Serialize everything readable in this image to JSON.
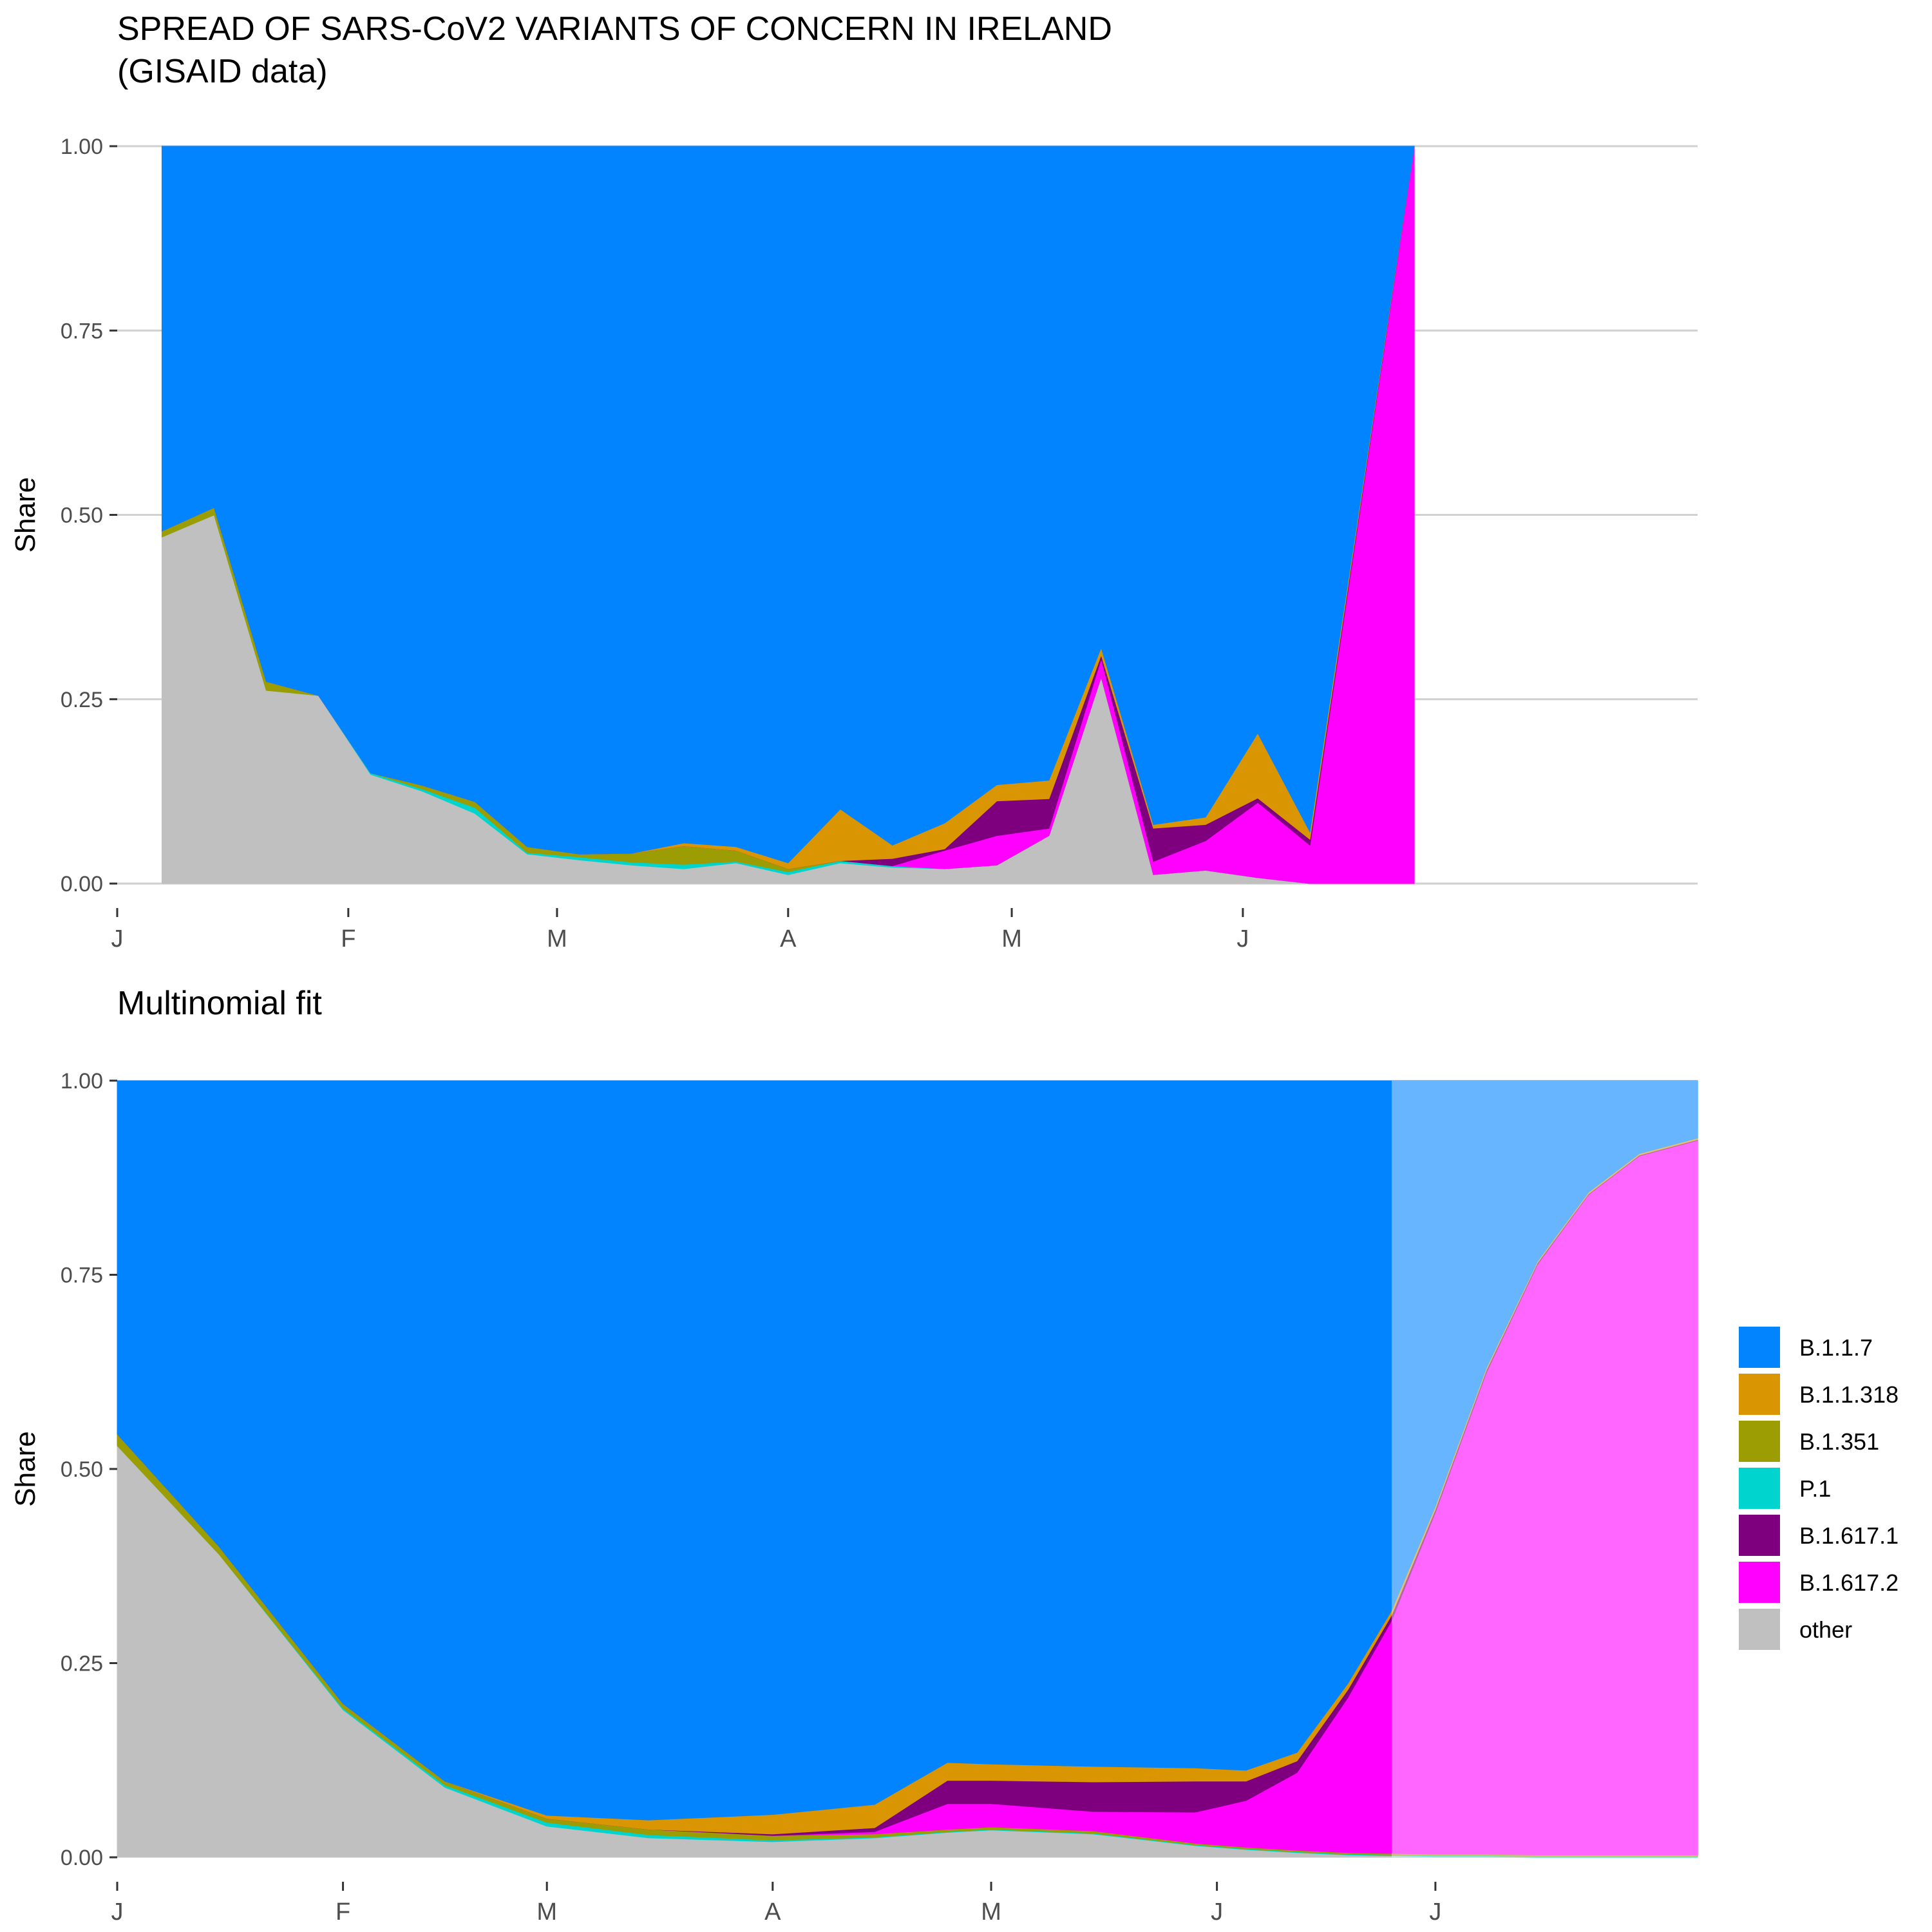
{
  "figure": {
    "title_line1": "SPREAD OF SARS-CoV2 VARIANTS OF CONCERN IN IRELAND",
    "title_line2": "(GISAID data)"
  },
  "legend": {
    "items": [
      {
        "label": "B.1.1.7",
        "color": "#0384FF"
      },
      {
        "label": "B.1.1.318",
        "color": "#DA9602"
      },
      {
        "label": "B.1.351",
        "color": "#9B9D02"
      },
      {
        "label": "P.1",
        "color": "#00D4CF"
      },
      {
        "label": "B.1.617.1",
        "color": "#7E007F"
      },
      {
        "label": "B.1.617.2",
        "color": "#FF00FF"
      },
      {
        "label": "other",
        "color": "#C0C0C0"
      }
    ]
  },
  "chart_data": [
    {
      "type": "area",
      "title": "",
      "xlabel": "",
      "ylabel": "Share",
      "ylim": [
        0,
        1
      ],
      "y_ticks": [
        "0.00",
        "0.25",
        "0.50",
        "0.75",
        "1.00"
      ],
      "x_ticks": [
        {
          "date": "2021-01-01",
          "label": "J"
        },
        {
          "date": "2021-02-01",
          "label": "F"
        },
        {
          "date": "2021-03-01",
          "label": "M"
        },
        {
          "date": "2021-04-01",
          "label": "A"
        },
        {
          "date": "2021-05-01",
          "label": "M"
        },
        {
          "date": "2021-06-01",
          "label": "J"
        }
      ],
      "xlim": [
        "2021-01-01",
        "2021-08-01"
      ],
      "grid": "horizontal",
      "x": [
        "2021-01-07",
        "2021-01-14",
        "2021-01-21",
        "2021-01-28",
        "2021-02-04",
        "2021-02-11",
        "2021-02-18",
        "2021-02-25",
        "2021-03-04",
        "2021-03-11",
        "2021-03-18",
        "2021-03-25",
        "2021-04-01",
        "2021-04-08",
        "2021-04-15",
        "2021-04-22",
        "2021-04-29",
        "2021-05-06",
        "2021-05-13",
        "2021-05-20",
        "2021-05-27",
        "2021-06-03",
        "2021-06-10",
        "2021-06-24"
      ],
      "series": [
        {
          "name": "other",
          "color": "#C0C0C0",
          "values": [
            0.47,
            0.5,
            0.262,
            0.255,
            0.148,
            0.125,
            0.095,
            0.04,
            0.032,
            0.025,
            0.02,
            0.028,
            0.012,
            0.028,
            0.022,
            0.02,
            0.025,
            0.065,
            0.28,
            0.012,
            0.018,
            0.008,
            0.0,
            0.0
          ]
        },
        {
          "name": "P.1",
          "color": "#00D4CF",
          "values": [
            0,
            0,
            0,
            0,
            0.002,
            0.003,
            0.008,
            0.002,
            0.004,
            0.004,
            0.006,
            0.002,
            0.004,
            0.003,
            0.002,
            0,
            0,
            0,
            0,
            0,
            0,
            0,
            0,
            0
          ]
        },
        {
          "name": "B.1.351",
          "color": "#9B9D02",
          "values": [
            0.008,
            0.01,
            0.012,
            0,
            0,
            0.005,
            0.008,
            0.008,
            0.004,
            0.012,
            0.025,
            0.015,
            0.004,
            0,
            0,
            0,
            0,
            0,
            0,
            0,
            0,
            0,
            0,
            0
          ]
        },
        {
          "name": "B.1.617.2",
          "color": "#FF00FF",
          "values": [
            0,
            0,
            0,
            0,
            0,
            0,
            0,
            0,
            0,
            0,
            0,
            0,
            0,
            0,
            0,
            0.025,
            0.04,
            0.01,
            0.025,
            0.018,
            0.04,
            0.102,
            0.052,
            1.0
          ]
        },
        {
          "name": "B.1.617.1",
          "color": "#7E007F",
          "values": [
            0,
            0,
            0,
            0,
            0,
            0,
            0,
            0,
            0,
            0,
            0,
            0,
            0,
            0,
            0.01,
            0.002,
            0.047,
            0.04,
            0.005,
            0.045,
            0.022,
            0.006,
            0.008,
            0
          ]
        },
        {
          "name": "B.1.1.318",
          "color": "#DA9602",
          "values": [
            0,
            0,
            0,
            0,
            0,
            0,
            0,
            0,
            0,
            0,
            0.004,
            0.005,
            0.008,
            0.07,
            0.018,
            0.035,
            0.022,
            0.025,
            0.01,
            0.005,
            0.01,
            0.088,
            0.01,
            0
          ]
        },
        {
          "name": "B.1.1.7",
          "color": "#0384FF",
          "values": [
            0.522,
            0.49,
            0.726,
            0.745,
            0.85,
            0.867,
            0.889,
            0.95,
            0.96,
            0.959,
            0.945,
            0.95,
            0.972,
            0.899,
            0.948,
            0.918,
            0.866,
            0.86,
            0.68,
            0.92,
            0.91,
            0.796,
            0.93,
            0
          ]
        }
      ]
    },
    {
      "type": "area",
      "title": "Multinomial fit",
      "xlabel": "",
      "ylabel": "Share",
      "ylim": [
        0,
        1
      ],
      "y_ticks": [
        "0.00",
        "0.25",
        "0.50",
        "0.75",
        "1.00"
      ],
      "x_ticks": [
        {
          "date": "2021-01-01",
          "label": "J"
        },
        {
          "date": "2021-02-01",
          "label": "F"
        },
        {
          "date": "2021-03-01",
          "label": "M"
        },
        {
          "date": "2021-04-01",
          "label": "A"
        },
        {
          "date": "2021-05-01",
          "label": "M"
        },
        {
          "date": "2021-06-01",
          "label": "J"
        },
        {
          "date": "2021-07-01",
          "label": "J"
        }
      ],
      "xlim": [
        "2021-01-01",
        "2021-08-06"
      ],
      "grid": "none",
      "forecast_from": "2021-06-25",
      "x": [
        "2021-01-01",
        "2021-01-15",
        "2021-02-01",
        "2021-02-15",
        "2021-03-01",
        "2021-03-15",
        "2021-04-01",
        "2021-04-15",
        "2021-04-25",
        "2021-05-01",
        "2021-05-15",
        "2021-05-29",
        "2021-06-05",
        "2021-06-12",
        "2021-06-19",
        "2021-06-25",
        "2021-07-01",
        "2021-07-08",
        "2021-07-15",
        "2021-07-22",
        "2021-07-29",
        "2021-08-06"
      ],
      "series": [
        {
          "name": "other",
          "color": "#C0C0C0",
          "values": [
            0.53,
            0.39,
            0.19,
            0.09,
            0.04,
            0.025,
            0.02,
            0.025,
            0.032,
            0.035,
            0.03,
            0.015,
            0.01,
            0.006,
            0.003,
            0.002,
            0.001,
            0.001,
            0.0,
            0.0,
            0.0,
            0.0
          ]
        },
        {
          "name": "P.1",
          "color": "#00D4CF",
          "values": [
            0,
            0,
            0.002,
            0.003,
            0.005,
            0.004,
            0.002,
            0.001,
            0.001,
            0.001,
            0.001,
            0.001,
            0.001,
            0.001,
            0.001,
            0.001,
            0.001,
            0.001,
            0.001,
            0.001,
            0.001,
            0.001
          ]
        },
        {
          "name": "B.1.351",
          "color": "#9B9D02",
          "values": [
            0.015,
            0.01,
            0.006,
            0.005,
            0.005,
            0.007,
            0.006,
            0.004,
            0.003,
            0.003,
            0.003,
            0.002,
            0.002,
            0.002,
            0.002,
            0.002,
            0.002,
            0.002,
            0.002,
            0.002,
            0.002,
            0.002
          ]
        },
        {
          "name": "B.1.617.2",
          "color": "#FF00FF",
          "values": [
            0,
            0,
            0,
            0,
            0,
            0,
            0,
            0.003,
            0.033,
            0.03,
            0.025,
            0.04,
            0.06,
            0.1,
            0.2,
            0.3,
            0.44,
            0.62,
            0.76,
            0.85,
            0.9,
            0.92
          ]
        },
        {
          "name": "B.1.617.1",
          "color": "#7E007F",
          "values": [
            0,
            0,
            0,
            0,
            0,
            0,
            0.002,
            0.005,
            0.03,
            0.03,
            0.038,
            0.04,
            0.025,
            0.015,
            0.01,
            0.007,
            0.004,
            0.003,
            0.002,
            0.001,
            0.001,
            0.001
          ]
        },
        {
          "name": "B.1.1.318",
          "color": "#DA9602",
          "values": [
            0,
            0,
            0,
            0,
            0.004,
            0.012,
            0.025,
            0.03,
            0.023,
            0.021,
            0.02,
            0.017,
            0.014,
            0.011,
            0.008,
            0.006,
            0.004,
            0.003,
            0.002,
            0.002,
            0.002,
            0.002
          ]
        },
        {
          "name": "B.1.1.7",
          "color": "#0384FF",
          "values": [
            0.455,
            0.6,
            0.802,
            0.902,
            0.946,
            0.952,
            0.945,
            0.932,
            0.878,
            0.88,
            0.883,
            0.885,
            0.888,
            0.865,
            0.776,
            0.682,
            0.548,
            0.37,
            0.233,
            0.144,
            0.094,
            0.074
          ]
        }
      ]
    }
  ]
}
